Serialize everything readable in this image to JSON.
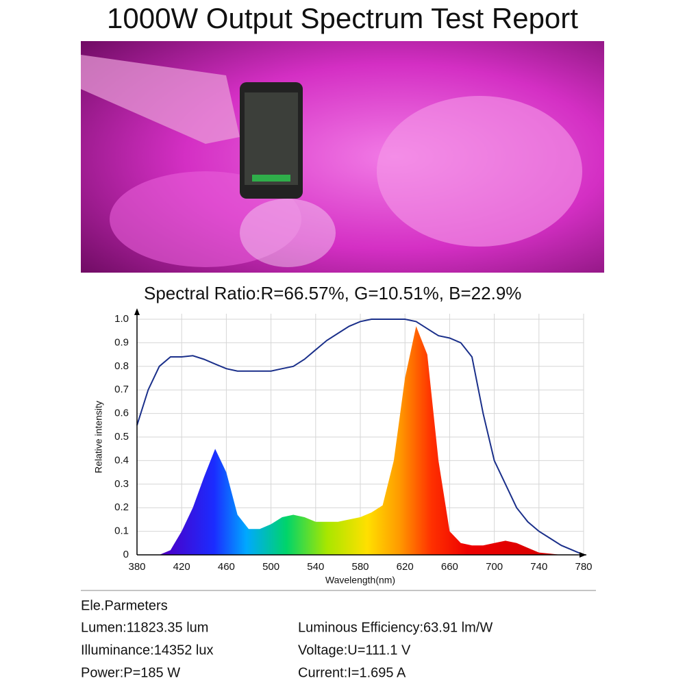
{
  "title": "1000W Output Spectrum Test Report",
  "subtitle": "Spectral Ratio:R=66.57%, G=10.51%, B=22.9%",
  "chart_data": {
    "type": "line",
    "xlabel": "Wavelength(nm)",
    "ylabel": "Relative intensity",
    "x": [
      380,
      390,
      400,
      410,
      420,
      430,
      440,
      450,
      460,
      470,
      480,
      490,
      500,
      510,
      520,
      530,
      540,
      550,
      560,
      570,
      580,
      590,
      600,
      610,
      620,
      630,
      640,
      650,
      660,
      670,
      680,
      690,
      700,
      710,
      720,
      730,
      740,
      750,
      760,
      770,
      780
    ],
    "series": [
      {
        "color": "#1a2f8a",
        "fill": "rainbow",
        "values": [
          0,
          0,
          0,
          0.02,
          0.1,
          0.2,
          0.33,
          0.45,
          0.35,
          0.17,
          0.11,
          0.11,
          0.13,
          0.16,
          0.17,
          0.16,
          0.14,
          0.14,
          0.14,
          0.15,
          0.16,
          0.18,
          0.21,
          0.4,
          0.75,
          0.97,
          0.85,
          0.4,
          0.1,
          0.05,
          0.04,
          0.04,
          0.05,
          0.06,
          0.05,
          0.03,
          0.01,
          0.005,
          0,
          0,
          0
        ]
      },
      {
        "color": "#1a2f8a",
        "values": [
          0.55,
          0.7,
          0.8,
          0.84,
          0.84,
          0.845,
          0.83,
          0.81,
          0.79,
          0.78,
          0.78,
          0.78,
          0.78,
          0.79,
          0.8,
          0.83,
          0.87,
          0.91,
          0.94,
          0.97,
          0.99,
          1,
          1,
          1,
          1,
          0.99,
          0.96,
          0.93,
          0.92,
          0.9,
          0.84,
          0.6,
          0.4,
          0.3,
          0.2,
          0.14,
          0.1,
          0.07,
          0.04,
          0.02,
          0
        ]
      }
    ],
    "xlim": [
      380,
      780
    ],
    "xticks": [
      380,
      420,
      460,
      500,
      540,
      580,
      620,
      660,
      700,
      740,
      780
    ],
    "ylim": [
      0,
      1
    ],
    "yticks": [
      0,
      0.1,
      0.2,
      0.3,
      0.4,
      0.5,
      0.6,
      0.7,
      0.8,
      0.9,
      {
        "value": 1,
        "label": "1.0"
      }
    ],
    "grid": true
  },
  "parameters": {
    "heading": "Ele.Parmeters",
    "left": [
      "Lumen:11823.35 lum",
      "Illuminance:14352 lux",
      "Power:P=185 W"
    ],
    "right": [
      "Luminous Efficiency:63.91 lm/W",
      "Voltage:U=111.1 V",
      "Current:I=1.695 A"
    ]
  }
}
